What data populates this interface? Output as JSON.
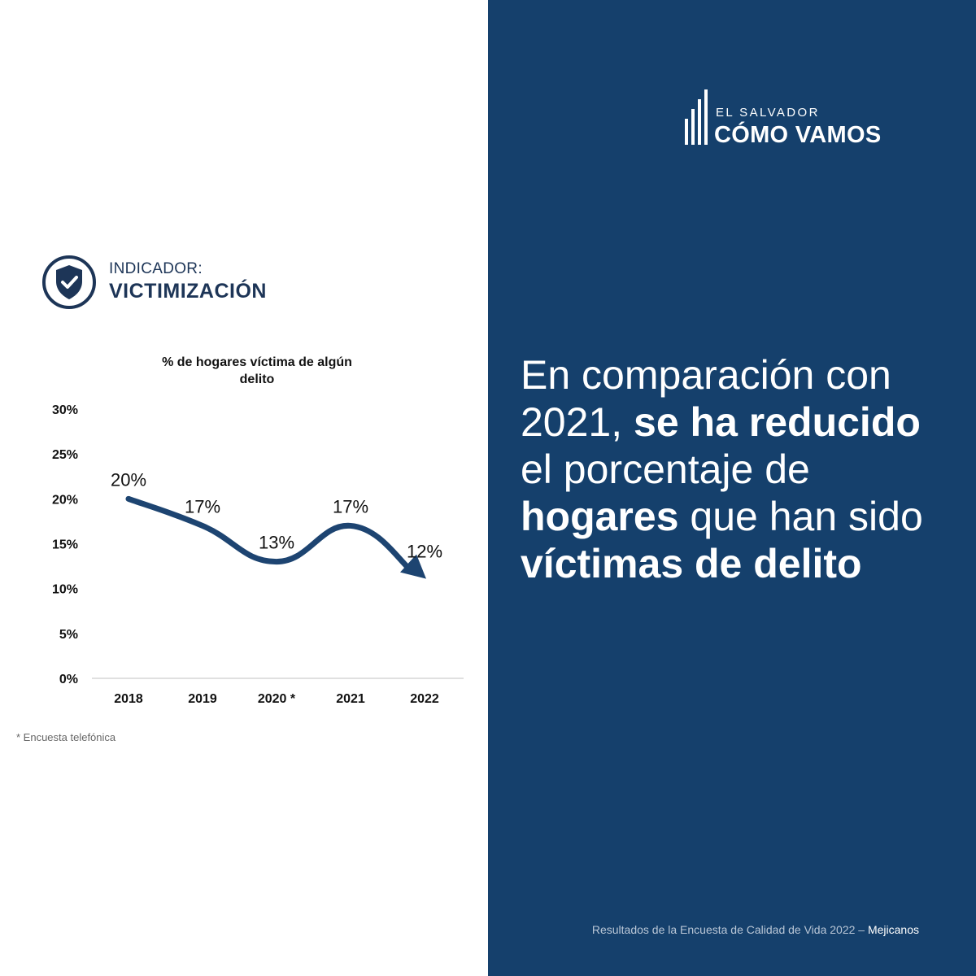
{
  "indicator": {
    "label": "INDICADOR:",
    "title": "VICTIMIZACIÓN",
    "icon": "shield-check-icon"
  },
  "chart_data": {
    "type": "line",
    "title": "% de hogares víctima de algún delito",
    "title_lines": [
      "% de hogares víctima de algún",
      "delito"
    ],
    "categories": [
      "2018",
      "2019",
      "2020 *",
      "2021",
      "2022"
    ],
    "series": [
      {
        "values": [
          20,
          17,
          13,
          17,
          12
        ]
      }
    ],
    "data_labels": [
      "20%",
      "17%",
      "13%",
      "17%",
      "12%"
    ],
    "yticks": [
      "0%",
      "5%",
      "10%",
      "15%",
      "20%",
      "25%",
      "30%"
    ],
    "ylim": [
      0,
      30
    ],
    "grid": false,
    "line_color": "#1d4471",
    "end_marker": "arrow"
  },
  "footnote": "* Encuesta telefónica",
  "logo": {
    "top": "EL SALVADOR",
    "main": "CÓMO VAMOS",
    "icon": "bars-logo-icon"
  },
  "headline": {
    "parts": [
      {
        "text": "En comparación con 2021, ",
        "bold": false
      },
      {
        "text": "se ha reducido",
        "bold": true
      },
      {
        "text": " el porcentaje de ",
        "bold": false
      },
      {
        "text": "hogares",
        "bold": true
      },
      {
        "text": " que han sido ",
        "bold": false
      },
      {
        "text": "víctimas de delito",
        "bold": true
      }
    ]
  },
  "source": {
    "text": "Resultados de la Encuesta de Calidad de Vida 2022 – ",
    "place": "Mejicanos"
  },
  "colors": {
    "panel": "#15406c",
    "accent_dark": "#1d3557"
  }
}
